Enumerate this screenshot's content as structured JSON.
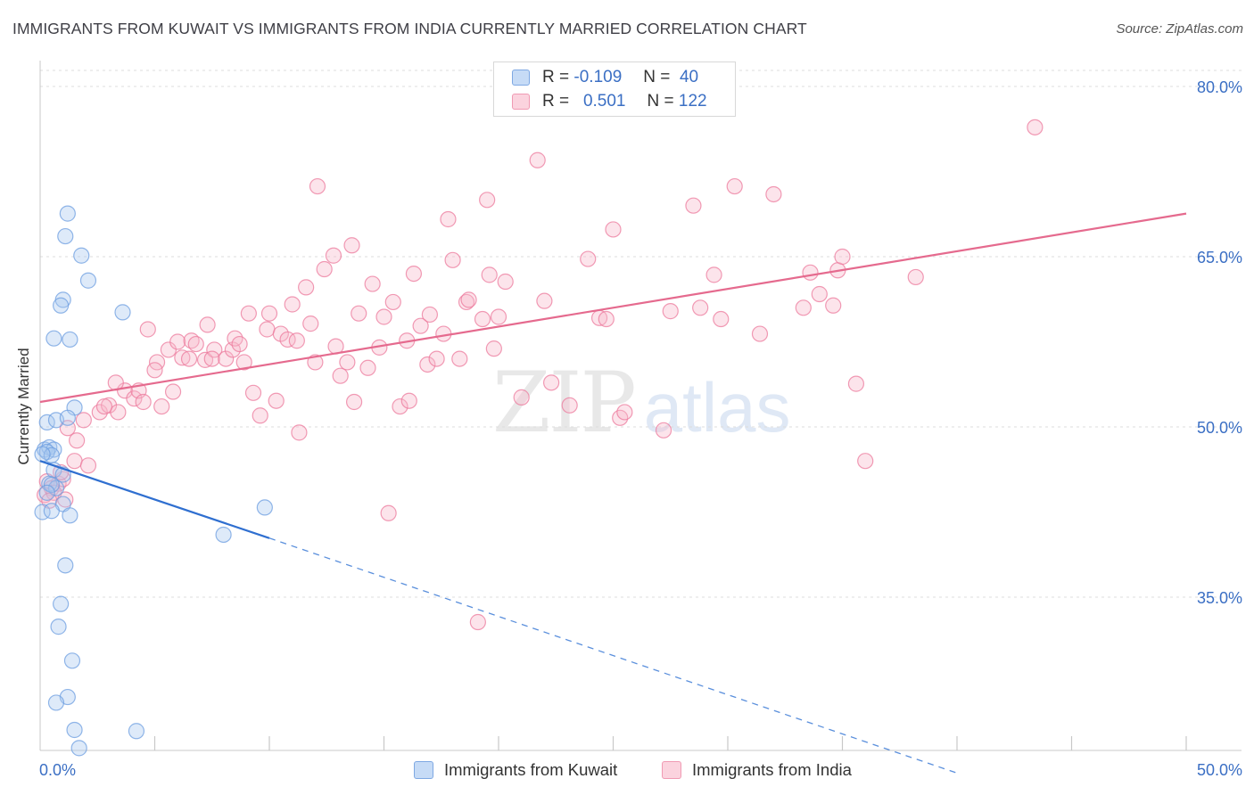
{
  "header": {
    "title": "IMMIGRANTS FROM KUWAIT VS IMMIGRANTS FROM INDIA CURRENTLY MARRIED CORRELATION CHART",
    "source": "Source: ZipAtlas.com"
  },
  "watermark": {
    "zip": "ZIP",
    "atlas": "atlas"
  },
  "legend": {
    "rows": [
      {
        "r_label": "R =",
        "r_value": "-0.109",
        "n_label": "N =",
        "n_value": "40",
        "color": "#a9c8f0"
      },
      {
        "r_label": "R =",
        "r_value": "0.501",
        "n_label": "N =",
        "n_value": "122",
        "color": "#f7b7ca"
      }
    ]
  },
  "bottom_legend": {
    "items": [
      {
        "label": "Immigrants from Kuwait",
        "color": "#a9c8f0"
      },
      {
        "label": "Immigrants from India",
        "color": "#f7b7ca"
      }
    ]
  },
  "chart_data": {
    "type": "scatter",
    "title": "IMMIGRANTS FROM KUWAIT VS IMMIGRANTS FROM INDIA CURRENTLY MARRIED CORRELATION CHART",
    "xlabel": "",
    "ylabel": "Currently Married",
    "xlim": [
      0,
      50
    ],
    "ylim": [
      20,
      82
    ],
    "x_tick_labels": [
      "0.0%",
      "50.0%"
    ],
    "y_ticks": [
      35,
      50,
      65,
      80
    ],
    "y_tick_labels": [
      "35.0%",
      "50.0%",
      "65.0%",
      "80.0%"
    ],
    "grid": "horizontal dashed",
    "legend_position": "top-center",
    "series": [
      {
        "name": "Immigrants from Kuwait",
        "color": "#6c9ee0",
        "fill": "#a9c8f0",
        "r": -0.109,
        "n": 40,
        "trend": {
          "x_start": 0,
          "y_start": 47.0,
          "x_solid_end": 10,
          "y_solid_end": 40.2,
          "x_dash_end": 40,
          "y_dash_end": 19.5
        },
        "points": [
          [
            1.2,
            68.8
          ],
          [
            1.1,
            66.8
          ],
          [
            1.8,
            65.1
          ],
          [
            2.1,
            62.9
          ],
          [
            1.0,
            61.2
          ],
          [
            0.9,
            60.7
          ],
          [
            3.6,
            60.1
          ],
          [
            0.6,
            57.8
          ],
          [
            1.3,
            57.7
          ],
          [
            1.5,
            51.7
          ],
          [
            0.3,
            50.4
          ],
          [
            0.7,
            50.6
          ],
          [
            1.2,
            50.8
          ],
          [
            0.2,
            48.0
          ],
          [
            0.4,
            48.2
          ],
          [
            0.6,
            48.0
          ],
          [
            0.3,
            47.8
          ],
          [
            0.5,
            47.5
          ],
          [
            0.1,
            47.6
          ],
          [
            0.6,
            46.2
          ],
          [
            1.0,
            45.8
          ],
          [
            0.4,
            45.0
          ],
          [
            0.7,
            44.6
          ],
          [
            0.5,
            44.9
          ],
          [
            0.3,
            44.2
          ],
          [
            1.0,
            43.2
          ],
          [
            0.1,
            42.5
          ],
          [
            0.5,
            42.6
          ],
          [
            1.3,
            42.2
          ],
          [
            9.8,
            42.9
          ],
          [
            8.0,
            40.5
          ],
          [
            1.1,
            37.8
          ],
          [
            0.9,
            34.4
          ],
          [
            0.8,
            32.4
          ],
          [
            1.4,
            29.4
          ],
          [
            1.2,
            26.2
          ],
          [
            0.7,
            25.7
          ],
          [
            1.5,
            23.3
          ],
          [
            4.2,
            23.2
          ],
          [
            1.7,
            21.7
          ]
        ]
      },
      {
        "name": "Immigrants from India",
        "color": "#ec7a9c",
        "fill": "#f7b7ca",
        "r": 0.501,
        "n": 122,
        "trend": {
          "x_start": 0,
          "y_start": 52.2,
          "x_end": 50,
          "y_end": 68.8
        },
        "points": [
          [
            0.3,
            45.2
          ],
          [
            0.5,
            44.6
          ],
          [
            0.8,
            45.0
          ],
          [
            0.2,
            44.0
          ],
          [
            1.0,
            45.4
          ],
          [
            0.6,
            44.2
          ],
          [
            0.9,
            46.0
          ],
          [
            1.1,
            43.6
          ],
          [
            0.4,
            43.5
          ],
          [
            1.2,
            49.9
          ],
          [
            1.6,
            48.8
          ],
          [
            1.5,
            47.0
          ],
          [
            2.1,
            46.6
          ],
          [
            1.9,
            50.6
          ],
          [
            2.6,
            51.3
          ],
          [
            3.0,
            51.9
          ],
          [
            3.4,
            51.3
          ],
          [
            2.8,
            51.8
          ],
          [
            3.7,
            53.2
          ],
          [
            3.3,
            53.9
          ],
          [
            4.1,
            52.5
          ],
          [
            4.3,
            53.2
          ],
          [
            4.5,
            52.2
          ],
          [
            5.3,
            51.8
          ],
          [
            5.8,
            53.1
          ],
          [
            4.7,
            58.6
          ],
          [
            5.1,
            55.7
          ],
          [
            5.0,
            55.0
          ],
          [
            5.6,
            56.8
          ],
          [
            6.0,
            57.5
          ],
          [
            6.2,
            56.1
          ],
          [
            6.5,
            56.0
          ],
          [
            6.6,
            57.6
          ],
          [
            6.8,
            57.3
          ],
          [
            7.2,
            55.9
          ],
          [
            7.3,
            59.0
          ],
          [
            7.6,
            56.8
          ],
          [
            7.5,
            56.0
          ],
          [
            8.1,
            56.0
          ],
          [
            8.4,
            56.8
          ],
          [
            8.5,
            57.8
          ],
          [
            8.7,
            57.3
          ],
          [
            8.9,
            55.7
          ],
          [
            9.1,
            60.0
          ],
          [
            9.3,
            53.0
          ],
          [
            9.6,
            51.0
          ],
          [
            9.9,
            58.6
          ],
          [
            10.0,
            60.0
          ],
          [
            10.3,
            52.3
          ],
          [
            10.5,
            58.2
          ],
          [
            10.8,
            57.7
          ],
          [
            11.0,
            60.8
          ],
          [
            11.2,
            57.6
          ],
          [
            11.3,
            49.5
          ],
          [
            11.6,
            62.3
          ],
          [
            11.8,
            59.1
          ],
          [
            12.0,
            55.7
          ],
          [
            12.1,
            71.2
          ],
          [
            12.4,
            63.9
          ],
          [
            12.8,
            65.1
          ],
          [
            12.9,
            57.1
          ],
          [
            13.1,
            54.5
          ],
          [
            13.4,
            55.7
          ],
          [
            13.6,
            66.0
          ],
          [
            13.7,
            52.2
          ],
          [
            13.9,
            60.0
          ],
          [
            14.3,
            55.2
          ],
          [
            14.5,
            62.6
          ],
          [
            14.8,
            57.0
          ],
          [
            15.0,
            59.7
          ],
          [
            15.2,
            42.4
          ],
          [
            15.4,
            61.0
          ],
          [
            15.7,
            51.8
          ],
          [
            16.0,
            57.6
          ],
          [
            16.1,
            52.3
          ],
          [
            16.3,
            63.5
          ],
          [
            16.6,
            58.9
          ],
          [
            16.9,
            55.5
          ],
          [
            17.0,
            59.9
          ],
          [
            17.3,
            56.0
          ],
          [
            17.6,
            58.2
          ],
          [
            17.8,
            68.3
          ],
          [
            18.0,
            64.7
          ],
          [
            18.3,
            56.0
          ],
          [
            18.6,
            61.0
          ],
          [
            18.7,
            61.2
          ],
          [
            19.1,
            32.8
          ],
          [
            19.3,
            59.5
          ],
          [
            19.6,
            63.4
          ],
          [
            19.5,
            70.0
          ],
          [
            19.8,
            56.9
          ],
          [
            20.0,
            59.7
          ],
          [
            20.3,
            62.8
          ],
          [
            21.0,
            52.6
          ],
          [
            21.7,
            73.5
          ],
          [
            22.0,
            61.1
          ],
          [
            22.3,
            53.9
          ],
          [
            23.1,
            51.9
          ],
          [
            23.9,
            64.8
          ],
          [
            24.4,
            59.6
          ],
          [
            24.7,
            59.5
          ],
          [
            25.0,
            67.4
          ],
          [
            25.3,
            50.8
          ],
          [
            25.5,
            51.3
          ],
          [
            27.2,
            49.7
          ],
          [
            27.5,
            60.2
          ],
          [
            28.5,
            69.5
          ],
          [
            28.8,
            60.5
          ],
          [
            29.7,
            59.5
          ],
          [
            29.4,
            63.4
          ],
          [
            30.3,
            71.2
          ],
          [
            31.4,
            58.2
          ],
          [
            32.0,
            70.5
          ],
          [
            33.3,
            60.5
          ],
          [
            33.6,
            63.6
          ],
          [
            34.8,
            63.8
          ],
          [
            35.0,
            65.0
          ],
          [
            35.6,
            53.8
          ],
          [
            36.0,
            47.0
          ],
          [
            38.2,
            63.2
          ],
          [
            43.4,
            76.4
          ],
          [
            34.0,
            61.7
          ],
          [
            34.6,
            60.7
          ]
        ]
      }
    ]
  }
}
